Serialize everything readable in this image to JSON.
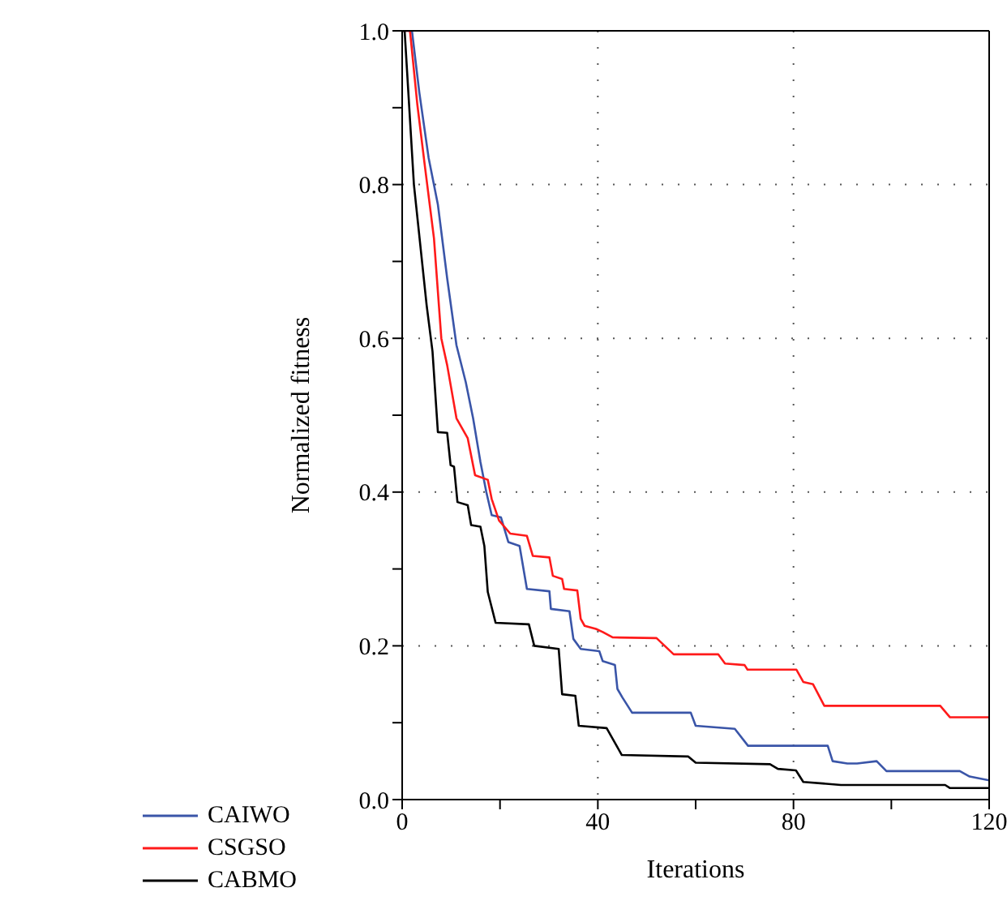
{
  "chart_data": {
    "type": "line",
    "xlabel": "Iterations",
    "ylabel": "Normalized fitness",
    "xlim": [
      0,
      120
    ],
    "ylim": [
      0,
      1
    ],
    "xticks": [
      0,
      {
        "value": 20,
        "label": null
      },
      40,
      {
        "value": 60,
        "label": null
      },
      80,
      {
        "value": 100,
        "label": null
      },
      120
    ],
    "yticks": [
      {
        "value": 0,
        "label": "0.0"
      },
      {
        "value": 0.1,
        "label": null
      },
      0.2,
      {
        "value": 0.3,
        "label": null
      },
      0.4,
      {
        "value": 0.5,
        "label": null
      },
      0.6,
      {
        "value": 0.7,
        "label": null
      },
      0.8,
      {
        "value": 0.9,
        "label": null
      },
      {
        "value": 1,
        "label": "1.0"
      }
    ],
    "grid": true,
    "legend": "bottom",
    "line_style": "solid",
    "marker": "none",
    "series": [
      {
        "name": "CAIWO",
        "color": "#3a55a8",
        "x": [
          0,
          2,
          3.5,
          5.4,
          7.3,
          9.2,
          11.1,
          13,
          14.5,
          16,
          17.2,
          18.3,
          20.2,
          21.7,
          24,
          25.5,
          30.1,
          30.4,
          34.2,
          35,
          36.5,
          40.3,
          41,
          43.5,
          44,
          45,
          47,
          59,
          60,
          68,
          70.7,
          87,
          88,
          91,
          93,
          97,
          99,
          114,
          116,
          120
        ],
        "values": [
          1,
          1,
          0.92,
          0.835,
          0.774,
          0.678,
          0.591,
          0.543,
          0.496,
          0.439,
          0.4,
          0.37,
          0.367,
          0.335,
          0.33,
          0.274,
          0.271,
          0.248,
          0.245,
          0.209,
          0.196,
          0.193,
          0.18,
          0.175,
          0.144,
          0.133,
          0.113,
          0.113,
          0.096,
          0.092,
          0.07,
          0.07,
          0.05,
          0.047,
          0.047,
          0.05,
          0.037,
          0.037,
          0.03,
          0.025
        ]
      },
      {
        "name": "CSGSO",
        "color": "#ff1a1a",
        "x": [
          0,
          1.6,
          3.1,
          4.6,
          6.5,
          8,
          9.2,
          11.1,
          13.4,
          14.9,
          17.5,
          18.3,
          19.8,
          22.1,
          25.5,
          26.7,
          30.1,
          30.8,
          32.7,
          33.1,
          35.8,
          36.5,
          37.3,
          39.6,
          41,
          43,
          52,
          55.5,
          64.6,
          66,
          70,
          70.6,
          80.6,
          82,
          84,
          86.3,
          110,
          112,
          120
        ],
        "values": [
          1,
          1,
          0.904,
          0.826,
          0.73,
          0.6,
          0.565,
          0.496,
          0.47,
          0.422,
          0.416,
          0.391,
          0.363,
          0.346,
          0.343,
          0.317,
          0.315,
          0.291,
          0.287,
          0.274,
          0.272,
          0.235,
          0.226,
          0.222,
          0.218,
          0.211,
          0.21,
          0.189,
          0.189,
          0.177,
          0.175,
          0.169,
          0.169,
          0.153,
          0.15,
          0.122,
          0.122,
          0.107,
          0.107
        ]
      },
      {
        "name": "CABMO",
        "color": "#000000",
        "x": [
          0,
          0.5,
          2.4,
          5,
          6.2,
          7.3,
          9.2,
          9.9,
          10.6,
          11.3,
          13.4,
          14.1,
          16,
          16.8,
          17.5,
          19.1,
          25.9,
          27,
          32,
          32.7,
          35.4,
          36.1,
          41.8,
          44.9,
          58.5,
          60,
          75.2,
          76.8,
          80.5,
          82,
          89.7,
          111,
          112,
          120
        ],
        "values": [
          1,
          1,
          0.8,
          0.643,
          0.583,
          0.478,
          0.477,
          0.435,
          0.433,
          0.387,
          0.383,
          0.357,
          0.355,
          0.33,
          0.27,
          0.23,
          0.228,
          0.2,
          0.196,
          0.137,
          0.135,
          0.096,
          0.093,
          0.058,
          0.056,
          0.048,
          0.046,
          0.04,
          0.038,
          0.023,
          0.019,
          0.019,
          0.015,
          0.015
        ]
      }
    ]
  }
}
